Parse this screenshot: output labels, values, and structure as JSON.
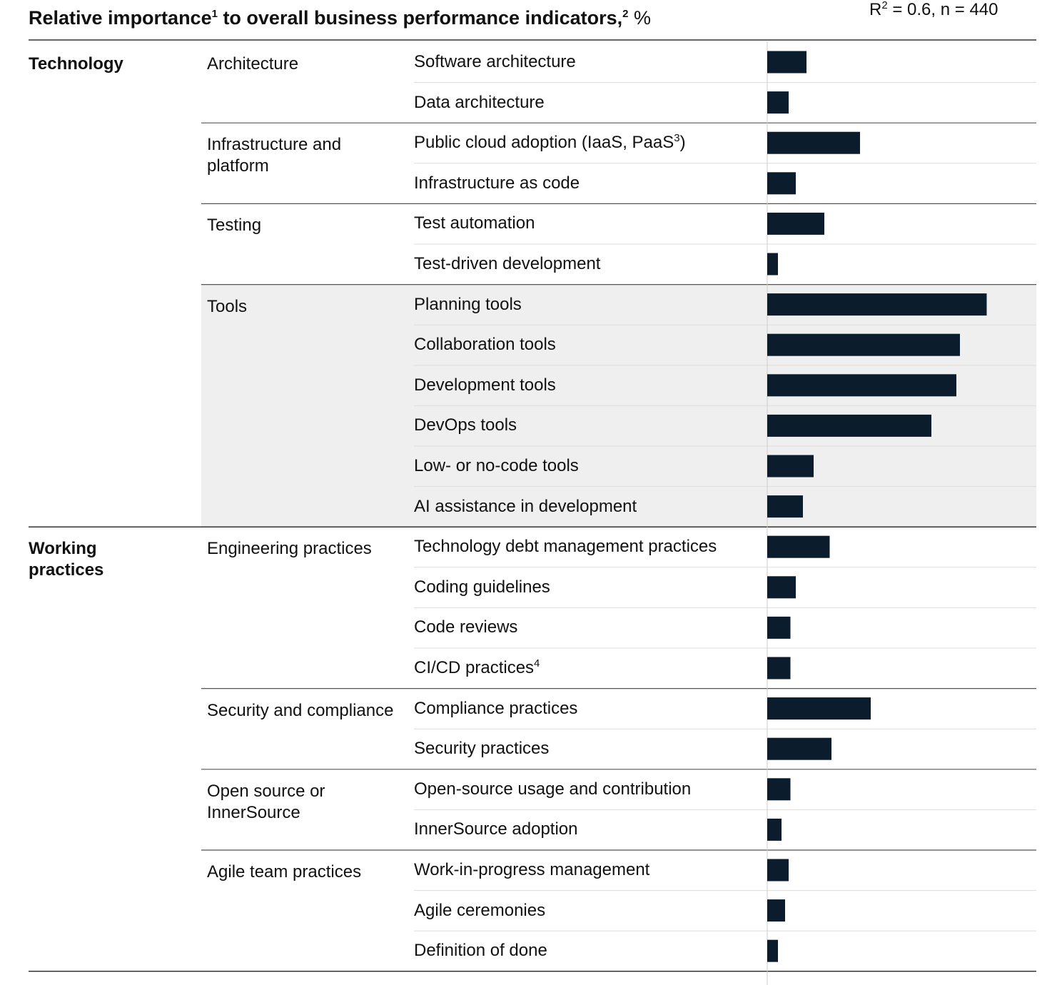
{
  "chart_data": {
    "type": "bar",
    "title": {
      "text": "Relative importance",
      "note1": "1",
      "text2": " to overall business performance indicators,",
      "note2": "2",
      "unit": "%"
    },
    "annotation": {
      "text": "R",
      "power": "2",
      "text2": " = 0.6, n = 440"
    },
    "color": "#0b1c2c",
    "highlight_color": "#efefef",
    "xlim": [
      0,
      15
    ],
    "sections": [
      {
        "name": "Technology",
        "groups": [
          {
            "name": "Architecture",
            "items": [
              {
                "label": "Software architecture",
                "value": 2.2
              },
              {
                "label": "Data architecture",
                "value": 1.2
              }
            ]
          },
          {
            "name": "Infrastructure and platform",
            "items": [
              {
                "label": "Public cloud adoption (IaaS, PaaS",
                "note": "3",
                "label_end": ")",
                "value": 5.2
              },
              {
                "label": "Infrastructure as code",
                "value": 1.6
              }
            ]
          },
          {
            "name": "Testing",
            "items": [
              {
                "label": "Test automation",
                "value": 3.2
              },
              {
                "label": "Test-driven development",
                "value": 0.6
              }
            ]
          },
          {
            "name": "Tools",
            "highlighted": true,
            "items": [
              {
                "label": "Planning tools",
                "value": 12.3
              },
              {
                "label": "Collaboration tools",
                "value": 10.8
              },
              {
                "label": "Development tools",
                "value": 10.6
              },
              {
                "label": "DevOps tools",
                "value": 9.2
              },
              {
                "label": "Low- or no-code tools",
                "value": 2.6
              },
              {
                "label": "AI assistance in development",
                "value": 2.0
              }
            ]
          }
        ]
      },
      {
        "name": "Working practices",
        "groups": [
          {
            "name": "Engineering practices",
            "items": [
              {
                "label": "Technology debt management practices",
                "value": 3.5
              },
              {
                "label": "Coding guidelines",
                "value": 1.6
              },
              {
                "label": "Code reviews",
                "value": 1.3
              },
              {
                "label": "CI/CD practices",
                "note": "4",
                "value": 1.3
              }
            ]
          },
          {
            "name": "Security and compliance",
            "items": [
              {
                "label": "Compliance practices",
                "value": 5.8
              },
              {
                "label": "Security practices",
                "value": 3.6
              }
            ]
          },
          {
            "name": "Open source or InnerSource",
            "items": [
              {
                "label": "Open-source usage and contribution",
                "value": 1.3
              },
              {
                "label": "InnerSource adoption",
                "value": 0.8
              }
            ]
          },
          {
            "name": "Agile team practices",
            "items": [
              {
                "label": "Work-in-progress management",
                "value": 1.2
              },
              {
                "label": "Agile ceremonies",
                "value": 1.0
              },
              {
                "label": "Definition of done",
                "value": 0.6
              }
            ]
          }
        ]
      }
    ]
  }
}
